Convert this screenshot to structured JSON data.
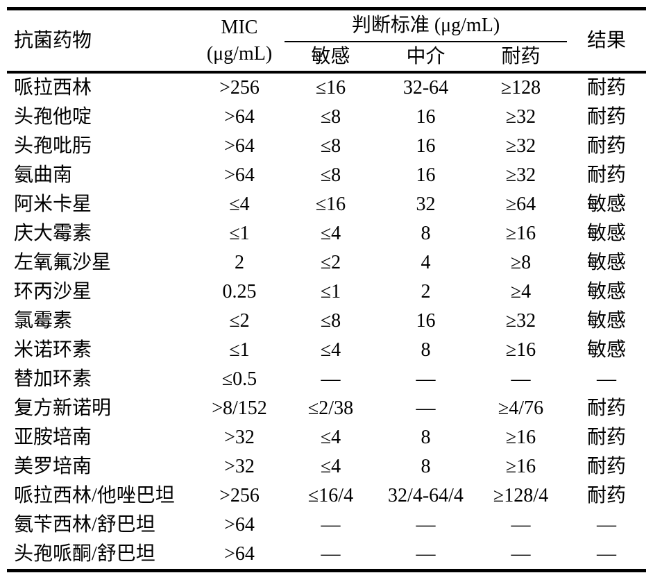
{
  "colors": {
    "text": "#000000",
    "background": "#ffffff",
    "rule": "#000000"
  },
  "table": {
    "header": {
      "col_drug": "抗菌药物",
      "col_mic_line1": "MIC",
      "col_mic_line2": "(μg/mL)",
      "col_criteria": "判断标准 (μg/mL)",
      "col_sensitive": "敏感",
      "col_intermediate": "中介",
      "col_resistant": "耐药",
      "col_result": "结果"
    },
    "rows": [
      {
        "drug": "哌拉西林",
        "mic": ">256",
        "sensitive": "≤16",
        "intermediate": "32-64",
        "resistant": "≥128",
        "result": "耐药"
      },
      {
        "drug": "头孢他啶",
        "mic": ">64",
        "sensitive": "≤8",
        "intermediate": "16",
        "resistant": "≥32",
        "result": "耐药"
      },
      {
        "drug": "头孢吡肟",
        "mic": ">64",
        "sensitive": "≤8",
        "intermediate": "16",
        "resistant": "≥32",
        "result": "耐药"
      },
      {
        "drug": "氨曲南",
        "mic": ">64",
        "sensitive": "≤8",
        "intermediate": "16",
        "resistant": "≥32",
        "result": "耐药"
      },
      {
        "drug": "阿米卡星",
        "mic": "≤4",
        "sensitive": "≤16",
        "intermediate": "32",
        "resistant": "≥64",
        "result": "敏感"
      },
      {
        "drug": "庆大霉素",
        "mic": "≤1",
        "sensitive": "≤4",
        "intermediate": "8",
        "resistant": "≥16",
        "result": "敏感"
      },
      {
        "drug": "左氧氟沙星",
        "mic": "2",
        "sensitive": "≤2",
        "intermediate": "4",
        "resistant": "≥8",
        "result": "敏感"
      },
      {
        "drug": "环丙沙星",
        "mic": "0.25",
        "sensitive": "≤1",
        "intermediate": "2",
        "resistant": "≥4",
        "result": "敏感"
      },
      {
        "drug": "氯霉素",
        "mic": "≤2",
        "sensitive": "≤8",
        "intermediate": "16",
        "resistant": "≥32",
        "result": "敏感"
      },
      {
        "drug": "米诺环素",
        "mic": "≤1",
        "sensitive": "≤4",
        "intermediate": "8",
        "resistant": "≥16",
        "result": "敏感"
      },
      {
        "drug": "替加环素",
        "mic": "≤0.5",
        "sensitive": "—",
        "intermediate": "—",
        "resistant": "—",
        "result": "—"
      },
      {
        "drug": "复方新诺明",
        "mic": ">8/152",
        "sensitive": "≤2/38",
        "intermediate": "—",
        "resistant": "≥4/76",
        "result": "耐药"
      },
      {
        "drug": "亚胺培南",
        "mic": ">32",
        "sensitive": "≤4",
        "intermediate": "8",
        "resistant": "≥16",
        "result": "耐药"
      },
      {
        "drug": "美罗培南",
        "mic": ">32",
        "sensitive": "≤4",
        "intermediate": "8",
        "resistant": "≥16",
        "result": "耐药"
      },
      {
        "drug": "哌拉西林/他唑巴坦",
        "mic": ">256",
        "sensitive": "≤16/4",
        "intermediate": "32/4-64/4",
        "resistant": "≥128/4",
        "result": "耐药"
      },
      {
        "drug": "氨苄西林/舒巴坦",
        "mic": ">64",
        "sensitive": "—",
        "intermediate": "—",
        "resistant": "—",
        "result": "—"
      },
      {
        "drug": "头孢哌酮/舒巴坦",
        "mic": ">64",
        "sensitive": "—",
        "intermediate": "—",
        "resistant": "—",
        "result": "—"
      }
    ]
  }
}
